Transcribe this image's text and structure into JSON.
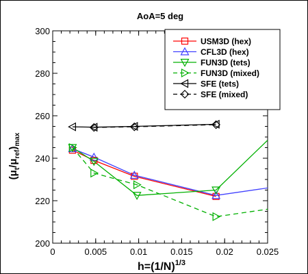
{
  "chart_data": {
    "type": "line",
    "title": "AoA=5 deg",
    "xlabel_base": "h=(1/N)",
    "xlabel_sup": "1/3",
    "ylabel_base": "(μ",
    "ylabel_sub1": "t",
    "ylabel_mid": "/μ",
    "ylabel_sub2": "ref",
    "ylabel_close": ")",
    "ylabel_sub3": "max",
    "xlim": [
      0,
      0.025
    ],
    "ylim": [
      200,
      300
    ],
    "xticks": [
      0,
      0.005,
      0.01,
      0.015,
      0.02,
      0.025
    ],
    "xtick_labels": [
      "0",
      "0.005",
      "0.01",
      "0.015",
      "0.02",
      "0.025"
    ],
    "yticks": [
      200,
      220,
      240,
      260,
      280,
      300
    ],
    "ytick_labels": [
      "200",
      "220",
      "240",
      "260",
      "280",
      "300"
    ],
    "grid": false,
    "legend_position": "top-right",
    "series": [
      {
        "name": "USM3D (hex)",
        "color": "#ff0000",
        "dash": "solid",
        "marker": "square",
        "line": [
          [
            0.0023,
            243.8
          ],
          [
            0.0048,
            239.0
          ],
          [
            0.0095,
            231.5
          ],
          [
            0.019,
            222.0
          ]
        ],
        "markers": [
          [
            0.0023,
            243.8
          ],
          [
            0.0048,
            239.0
          ],
          [
            0.0095,
            231.5
          ],
          [
            0.019,
            222.0
          ]
        ]
      },
      {
        "name": "CFL3D (hex)",
        "color": "#4040ff",
        "dash": "solid",
        "marker": "triangle-up",
        "line": [
          [
            0.0023,
            244.5
          ],
          [
            0.0048,
            240.5
          ],
          [
            0.0095,
            232.0
          ],
          [
            0.019,
            222.5
          ],
          [
            0.025,
            226.0
          ]
        ],
        "markers": [
          [
            0.0023,
            244.5
          ],
          [
            0.0048,
            240.5
          ],
          [
            0.0095,
            232.0
          ],
          [
            0.019,
            222.5
          ]
        ]
      },
      {
        "name": "FUN3D (tets)",
        "color": "#00b000",
        "dash": "solid",
        "marker": "triangle-down",
        "line": [
          [
            0.0023,
            245.0
          ],
          [
            0.0048,
            238.5
          ],
          [
            0.0098,
            222.5
          ],
          [
            0.019,
            225.0
          ],
          [
            0.025,
            248.5
          ]
        ],
        "markers": [
          [
            0.0023,
            245.0
          ],
          [
            0.0048,
            238.5
          ],
          [
            0.0098,
            222.5
          ],
          [
            0.019,
            225.0
          ]
        ]
      },
      {
        "name": "FUN3D (mixed)",
        "color": "#00b000",
        "dash": "dashed",
        "marker": "triangle-right",
        "line": [
          [
            0.0023,
            245.0
          ],
          [
            0.0048,
            233.0
          ],
          [
            0.0098,
            227.5
          ],
          [
            0.019,
            212.5
          ],
          [
            0.025,
            216.0
          ]
        ],
        "markers": [
          [
            0.0023,
            245.0
          ],
          [
            0.0048,
            233.0
          ],
          [
            0.0098,
            227.5
          ],
          [
            0.019,
            212.5
          ]
        ]
      },
      {
        "name": "SFE (tets)",
        "color": "#000000",
        "dash": "solid",
        "marker": "triangle-left",
        "line": [
          [
            0.0023,
            254.8
          ],
          [
            0.0048,
            254.6
          ],
          [
            0.0095,
            255.0
          ],
          [
            0.019,
            256.0
          ]
        ],
        "markers": [
          [
            0.0023,
            254.8
          ],
          [
            0.0048,
            254.6
          ],
          [
            0.0095,
            255.0
          ],
          [
            0.019,
            256.0
          ]
        ]
      },
      {
        "name": "SFE (mixed)",
        "color": "#000000",
        "dash": "dashed",
        "marker": "diamond",
        "line": [
          [
            0.0048,
            254.5
          ],
          [
            0.0095,
            254.8
          ],
          [
            0.019,
            255.8
          ]
        ],
        "markers": [
          [
            0.0048,
            254.5
          ],
          [
            0.0095,
            254.8
          ],
          [
            0.019,
            255.8
          ]
        ]
      }
    ]
  }
}
